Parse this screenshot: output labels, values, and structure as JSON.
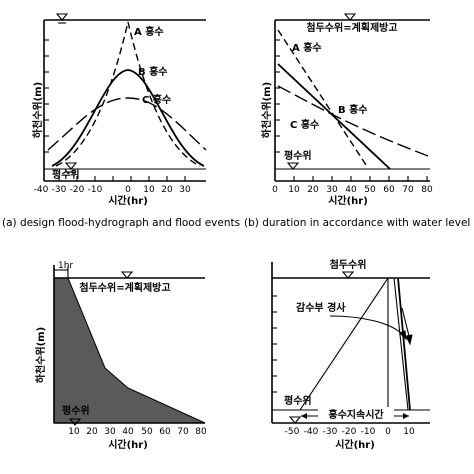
{
  "panel_a": {
    "caption": "(a) design flood-hydrograph and flood events",
    "y_label": "하천수위(m)",
    "x_label": "시간(hr)",
    "x_ticks": [
      "-40",
      "-30",
      "-20",
      "-10",
      "0",
      "10",
      "20",
      "30"
    ],
    "curve_a": "A 홍수",
    "curve_b": "B 홍수",
    "curve_c": "C 홍수",
    "low_level": "평수위"
  },
  "panel_b": {
    "caption": "(b) duration in accordance with water level",
    "y_label": "하천수위(m)",
    "x_label": "시간(hr)",
    "x_ticks": [
      "0",
      "10",
      "20",
      "30",
      "40",
      "50",
      "60",
      "70",
      "80"
    ],
    "top_label": "첨두수위=계획제방고",
    "curve_a": "A 홍수",
    "curve_b": "B 홍수",
    "curve_c": "C 홍수",
    "low_level": "평수위"
  },
  "panel_c": {
    "y_label": "하천수위(m)",
    "x_label": "시간(hr)",
    "x_ticks": [
      "10",
      "20",
      "30",
      "40",
      "50",
      "60",
      "70",
      "80"
    ],
    "hr_mark": "1hr",
    "top_label": "첨두수위=계획제방고",
    "low_level": "평수위"
  },
  "panel_d": {
    "x_label": "시간(hr)",
    "x_ticks": [
      "-50",
      "-40",
      "-30",
      "-20",
      "-10",
      "0",
      "10"
    ],
    "top_label": "첨두수위",
    "slope_label": "감수부 경사",
    "low_level": "평수위",
    "duration_label": "홍수지속시간"
  }
}
